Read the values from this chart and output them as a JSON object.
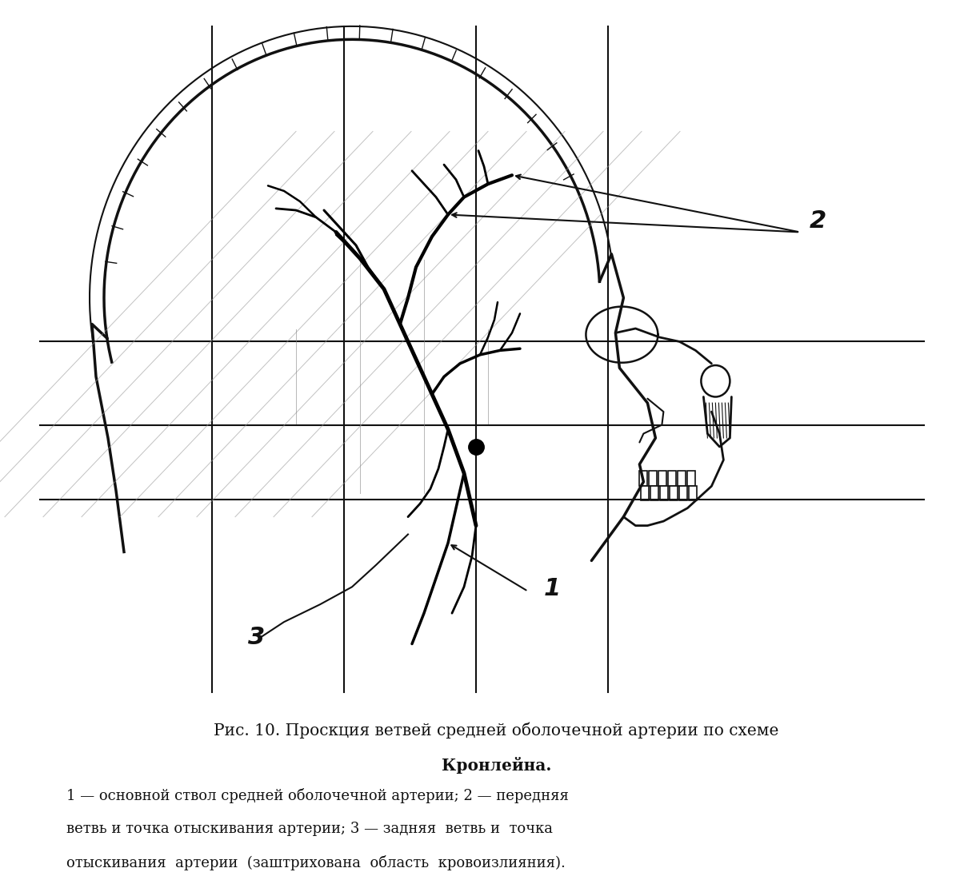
{
  "title_line1": "Рис. 10. Проскция ветвей средней оболочечной артерии по схеме",
  "title_line2": "Кронлейна.",
  "caption": "1 — основной ствол средней оболочечной артерии; 2 — передняя\nветвь и точка отыскивания артерии; 3 — задняя  ветвь и  точка\nотыскивания  артерии  (заштрихована  область  кровоизлияния).",
  "bg_color": "#ffffff",
  "line_color": "#111111",
  "label_color": "#111111",
  "fig_width": 12.05,
  "fig_height": 10.96,
  "dpi": 100
}
